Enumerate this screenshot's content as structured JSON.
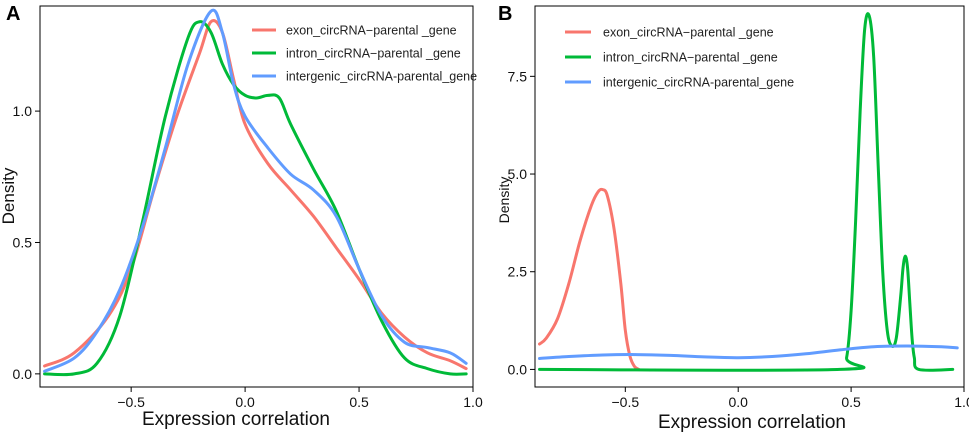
{
  "chart_data": [
    {
      "panel": "A",
      "type": "line",
      "title": "",
      "xlabel": "Expression correlation",
      "ylabel": "Density",
      "xlim": [
        -0.9,
        1.0
      ],
      "ylim": [
        -0.05,
        1.4
      ],
      "xticks": [
        -0.5,
        0.0,
        0.5,
        1.0
      ],
      "xtick_labels": [
        "−0.5",
        "0.0",
        "0.5",
        "1.0"
      ],
      "yticks": [
        0.0,
        0.5,
        1.0
      ],
      "ytick_labels": [
        "0.0",
        "0.5",
        "1.0"
      ],
      "legend_position": "top-right",
      "series": [
        {
          "name": "exon_circRNA−parental _gene",
          "color": "#F8766D",
          "x": [
            -0.88,
            -0.75,
            -0.6,
            -0.5,
            -0.4,
            -0.3,
            -0.2,
            -0.15,
            -0.1,
            -0.05,
            0.0,
            0.1,
            0.2,
            0.3,
            0.4,
            0.5,
            0.6,
            0.7,
            0.8,
            0.9,
            0.97
          ],
          "y": [
            0.03,
            0.08,
            0.22,
            0.4,
            0.7,
            0.98,
            1.22,
            1.34,
            1.3,
            1.12,
            0.95,
            0.8,
            0.7,
            0.6,
            0.48,
            0.36,
            0.23,
            0.14,
            0.08,
            0.05,
            0.02
          ]
        },
        {
          "name": "intron_circRNA−parental _gene",
          "color": "#00BA38",
          "x": [
            -0.88,
            -0.75,
            -0.65,
            -0.55,
            -0.45,
            -0.35,
            -0.25,
            -0.2,
            -0.15,
            -0.1,
            -0.05,
            0.0,
            0.05,
            0.1,
            0.15,
            0.2,
            0.3,
            0.4,
            0.5,
            0.6,
            0.7,
            0.8,
            0.9,
            0.97
          ],
          "y": [
            0.0,
            0.0,
            0.04,
            0.22,
            0.58,
            0.98,
            1.28,
            1.34,
            1.3,
            1.18,
            1.1,
            1.06,
            1.05,
            1.06,
            1.05,
            0.95,
            0.78,
            0.62,
            0.4,
            0.2,
            0.06,
            0.02,
            0.0,
            0.0
          ]
        },
        {
          "name": "intergenic_circRNA-parental_gene",
          "color": "#619CFF",
          "x": [
            -0.88,
            -0.75,
            -0.65,
            -0.55,
            -0.45,
            -0.35,
            -0.25,
            -0.15,
            -0.1,
            -0.05,
            0.0,
            0.1,
            0.2,
            0.3,
            0.4,
            0.5,
            0.6,
            0.7,
            0.8,
            0.9,
            0.97
          ],
          "y": [
            0.01,
            0.06,
            0.16,
            0.32,
            0.56,
            0.86,
            1.18,
            1.38,
            1.3,
            1.1,
            0.98,
            0.86,
            0.76,
            0.7,
            0.6,
            0.4,
            0.22,
            0.12,
            0.1,
            0.08,
            0.04
          ]
        }
      ]
    },
    {
      "panel": "B",
      "type": "line",
      "title": "",
      "xlabel": "Expression correlation",
      "ylabel": "Density",
      "xlim": [
        -0.9,
        1.0
      ],
      "ylim": [
        -0.45,
        9.3
      ],
      "xticks": [
        -0.5,
        0.0,
        0.5,
        1.0
      ],
      "xtick_labels": [
        "−0.5",
        "0.0",
        "0.5",
        "1.0"
      ],
      "yticks": [
        0.0,
        2.5,
        5.0,
        7.5
      ],
      "ytick_labels": [
        "0.0",
        "2.5",
        "5.0",
        "7.5"
      ],
      "legend_position": "top-left",
      "series": [
        {
          "name": "exon_circRNA−parental _gene",
          "color": "#F8766D",
          "x": [
            -0.88,
            -0.85,
            -0.8,
            -0.75,
            -0.7,
            -0.65,
            -0.62,
            -0.6,
            -0.58,
            -0.55,
            -0.52,
            -0.5,
            -0.48,
            -0.46,
            -0.44
          ],
          "y": [
            0.65,
            0.8,
            1.3,
            2.2,
            3.3,
            4.2,
            4.55,
            4.6,
            4.45,
            3.6,
            2.2,
            1.0,
            0.35,
            0.08,
            0.0
          ]
        },
        {
          "name": "intron_circRNA−parental _gene",
          "color": "#00BA38",
          "x": [
            -0.88,
            0.45,
            0.48,
            0.5,
            0.52,
            0.54,
            0.56,
            0.58,
            0.6,
            0.62,
            0.64,
            0.66,
            0.68,
            0.7,
            0.72,
            0.73,
            0.74,
            0.75,
            0.76,
            0.77,
            0.78,
            0.8,
            0.95
          ],
          "y": [
            0.0,
            0.0,
            0.3,
            1.5,
            3.8,
            6.6,
            8.7,
            9.05,
            8.0,
            5.2,
            2.5,
            1.0,
            0.6,
            0.8,
            1.9,
            2.6,
            2.9,
            2.6,
            1.7,
            0.8,
            0.3,
            0.0,
            0.0
          ]
        },
        {
          "name": "intergenic_circRNA-parental_gene",
          "color": "#619CFF",
          "x": [
            -0.88,
            -0.75,
            -0.6,
            -0.45,
            -0.3,
            -0.15,
            0.0,
            0.15,
            0.3,
            0.45,
            0.6,
            0.75,
            0.9,
            0.97
          ],
          "y": [
            0.28,
            0.33,
            0.37,
            0.38,
            0.36,
            0.32,
            0.3,
            0.33,
            0.4,
            0.5,
            0.58,
            0.6,
            0.58,
            0.55
          ]
        }
      ]
    }
  ]
}
